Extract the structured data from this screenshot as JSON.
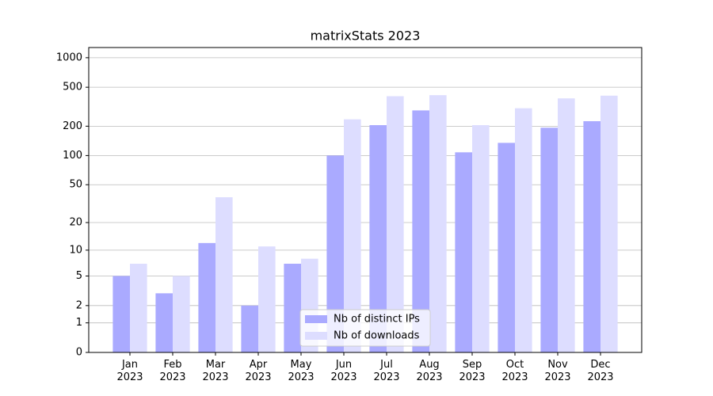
{
  "chart_data": {
    "type": "bar",
    "title": "matrixStats 2023",
    "categories": [
      "Jan\n2023",
      "Feb\n2023",
      "Mar\n2023",
      "Apr\n2023",
      "May\n2023",
      "Jun\n2023",
      "Jul\n2023",
      "Aug\n2023",
      "Sep\n2023",
      "Oct\n2023",
      "Nov\n2023",
      "Dec\n2023"
    ],
    "series": [
      {
        "name": "Nb of distinct IPs",
        "color": "#aaaaff",
        "values": [
          5,
          3,
          12,
          2,
          7,
          100,
          205,
          290,
          108,
          135,
          193,
          225
        ]
      },
      {
        "name": "Nb of downloads",
        "color": "#ddddff",
        "values": [
          7,
          5,
          37,
          11,
          8,
          235,
          405,
          415,
          205,
          305,
          385,
          410
        ]
      }
    ],
    "yscale": "log1p",
    "ylim": [
      0,
      1270
    ],
    "yticks": [
      0,
      1,
      2,
      5,
      10,
      20,
      50,
      100,
      200,
      500,
      1000
    ],
    "grid": true,
    "legend": "lower center"
  }
}
